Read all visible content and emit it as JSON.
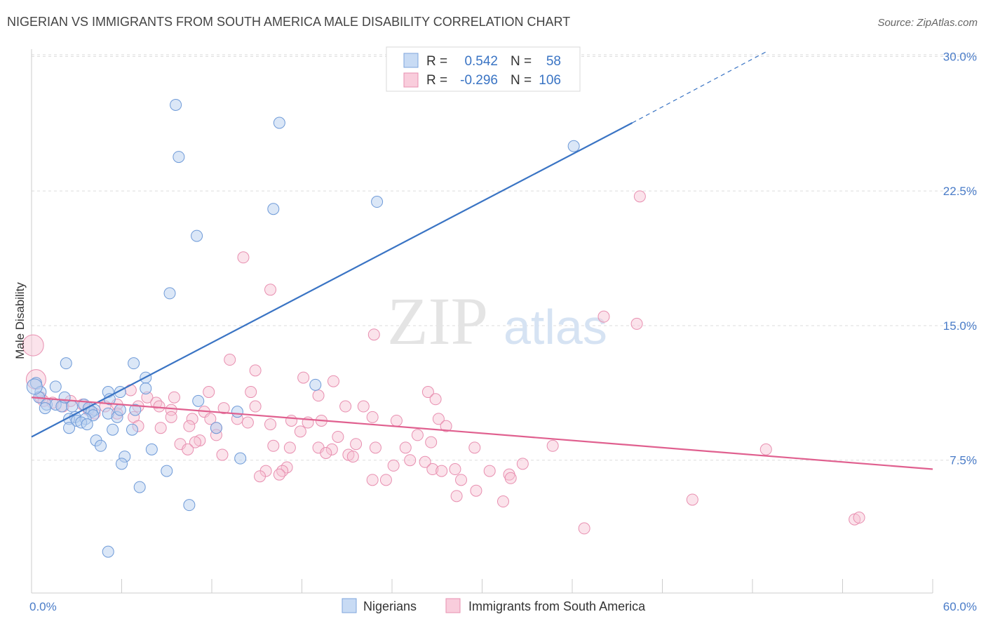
{
  "title": "NIGERIAN VS IMMIGRANTS FROM SOUTH AMERICA MALE DISABILITY CORRELATION CHART",
  "source": "Source: ZipAtlas.com",
  "watermark": {
    "zip": "ZIP",
    "atlas": "atlas"
  },
  "colors": {
    "blue": "#3a74c4",
    "blue_fill": "#b8d0f0",
    "pink": "#e0608f",
    "pink_fill": "#f7c0d2",
    "grid": "#dddddd",
    "tick_text": "#4a7cc8"
  },
  "legend": {
    "rows": [
      {
        "r_label": "R =",
        "r_value": "0.542",
        "n_label": "N =",
        "n_value": "58"
      },
      {
        "r_label": "R =",
        "r_value": "-0.296",
        "n_label": "N =",
        "n_value": "106"
      }
    ]
  },
  "chart_data": {
    "type": "scatter",
    "title": "NIGERIAN VS IMMIGRANTS FROM SOUTH AMERICA MALE DISABILITY CORRELATION CHART",
    "xlabel": "",
    "ylabel": "Male Disability",
    "xlim": [
      0,
      60
    ],
    "ylim": [
      0,
      31
    ],
    "x_tick_labels": [
      "0.0%",
      "60.0%"
    ],
    "y_ticks": [
      7.5,
      15.0,
      22.5,
      30.0
    ],
    "y_tick_labels": [
      "7.5%",
      "15.0%",
      "22.5%",
      "30.0%"
    ],
    "grid": true,
    "legend_position": "top-center",
    "series": [
      {
        "name": "Nigerians",
        "color": "#3a74c4",
        "trend": {
          "x0": 0,
          "y0": 8.8,
          "x1": 40,
          "y1": 26.3,
          "dash_to_x": 49,
          "dash_to_y": 30.3
        },
        "points": [
          [
            9.6,
            27.3
          ],
          [
            16.5,
            26.3
          ],
          [
            9.8,
            24.4
          ],
          [
            36.1,
            25.0
          ],
          [
            23,
            21.9
          ],
          [
            16.1,
            21.5
          ],
          [
            11,
            20.0
          ],
          [
            9.2,
            16.8
          ],
          [
            2.3,
            12.9
          ],
          [
            6.8,
            12.9
          ],
          [
            7.6,
            12.1
          ],
          [
            7.6,
            11.5
          ],
          [
            0.3,
            11.8
          ],
          [
            0.6,
            11.3
          ],
          [
            0.5,
            11.0
          ],
          [
            1,
            10.6
          ],
          [
            1.6,
            11.6
          ],
          [
            3.5,
            10.6
          ],
          [
            6.9,
            10.3
          ],
          [
            5.1,
            11.3
          ],
          [
            5.9,
            11.3
          ],
          [
            5.2,
            10.9
          ],
          [
            1.6,
            10.6
          ],
          [
            2,
            10.5
          ],
          [
            2.7,
            10.5
          ],
          [
            3.8,
            10.4
          ],
          [
            4.2,
            10.3
          ],
          [
            4,
            10.2
          ],
          [
            4.1,
            10.0
          ],
          [
            5.1,
            10.1
          ],
          [
            2.9,
            9.9
          ],
          [
            2.5,
            9.8
          ],
          [
            3,
            9.7
          ],
          [
            3.6,
            9.8
          ],
          [
            3.3,
            9.6
          ],
          [
            5.7,
            9.9
          ],
          [
            5.9,
            10.3
          ],
          [
            3.7,
            9.5
          ],
          [
            2.5,
            9.3
          ],
          [
            11.1,
            10.8
          ],
          [
            12.3,
            9.3
          ],
          [
            13.7,
            10.2
          ],
          [
            6.7,
            9.2
          ],
          [
            5.4,
            9.2
          ],
          [
            18.9,
            11.7
          ],
          [
            4.3,
            8.6
          ],
          [
            4.6,
            8.3
          ],
          [
            8,
            8.1
          ],
          [
            6.2,
            7.7
          ],
          [
            6,
            7.3
          ],
          [
            13.9,
            7.6
          ],
          [
            9,
            6.9
          ],
          [
            7.2,
            6.0
          ],
          [
            10.5,
            5.0
          ],
          [
            5.1,
            2.4
          ],
          [
            0.2,
            11.6
          ],
          [
            0.9,
            10.4
          ],
          [
            2.2,
            11.0
          ]
        ]
      },
      {
        "name": "Immigrants from South America",
        "color": "#e0608f",
        "trend": {
          "x0": 0,
          "y0": 11.0,
          "x1": 60,
          "y1": 7.0
        },
        "points": [
          [
            0.1,
            13.9
          ],
          [
            0.3,
            12.0
          ],
          [
            40.5,
            22.2
          ],
          [
            14.1,
            18.8
          ],
          [
            15.9,
            17.0
          ],
          [
            22.8,
            14.5
          ],
          [
            38.1,
            15.5
          ],
          [
            40.3,
            15.1
          ],
          [
            13.2,
            13.1
          ],
          [
            14.9,
            12.5
          ],
          [
            18.1,
            12.1
          ],
          [
            20.1,
            11.9
          ],
          [
            26.4,
            11.3
          ],
          [
            26.9,
            10.9
          ],
          [
            14.6,
            11.3
          ],
          [
            11.8,
            11.3
          ],
          [
            19.1,
            11.1
          ],
          [
            6.6,
            11.4
          ],
          [
            7.7,
            11.0
          ],
          [
            9.5,
            11.0
          ],
          [
            2.6,
            10.8
          ],
          [
            3.4,
            10.6
          ],
          [
            0.6,
            11.0
          ],
          [
            0.8,
            10.8
          ],
          [
            1.4,
            10.7
          ],
          [
            2.1,
            10.5
          ],
          [
            5.7,
            10.6
          ],
          [
            7.1,
            10.5
          ],
          [
            8.3,
            10.7
          ],
          [
            8.5,
            10.5
          ],
          [
            9.3,
            10.3
          ],
          [
            12.8,
            10.4
          ],
          [
            14.9,
            10.5
          ],
          [
            11.5,
            10.2
          ],
          [
            20.9,
            10.5
          ],
          [
            22.1,
            10.5
          ],
          [
            4.2,
            10.1
          ],
          [
            5.7,
            10.1
          ],
          [
            3.8,
            10.3
          ],
          [
            4.9,
            10.5
          ],
          [
            6.8,
            9.9
          ],
          [
            9.3,
            9.9
          ],
          [
            10.7,
            9.8
          ],
          [
            12.3,
            9.3
          ],
          [
            15.9,
            9.5
          ],
          [
            17.3,
            9.7
          ],
          [
            17.9,
            9.1
          ],
          [
            14.4,
            9.6
          ],
          [
            13.7,
            9.8
          ],
          [
            11.9,
            9.8
          ],
          [
            18.4,
            9.6
          ],
          [
            19.3,
            9.7
          ],
          [
            22.7,
            9.9
          ],
          [
            24.3,
            9.7
          ],
          [
            25.7,
            8.9
          ],
          [
            27.1,
            9.8
          ],
          [
            27.6,
            9.4
          ],
          [
            10.5,
            9.4
          ],
          [
            11.2,
            8.6
          ],
          [
            12.3,
            8.9
          ],
          [
            8.6,
            9.3
          ],
          [
            7.1,
            9.4
          ],
          [
            20.4,
            8.8
          ],
          [
            21.6,
            8.4
          ],
          [
            24.9,
            8.2
          ],
          [
            26.6,
            8.5
          ],
          [
            29.5,
            8.2
          ],
          [
            34.7,
            8.3
          ],
          [
            48.9,
            8.1
          ],
          [
            9.9,
            8.4
          ],
          [
            10.9,
            8.5
          ],
          [
            10.4,
            8.1
          ],
          [
            12.7,
            7.8
          ],
          [
            16.1,
            8.3
          ],
          [
            17.2,
            8.2
          ],
          [
            19.1,
            8.2
          ],
          [
            20,
            8.1
          ],
          [
            19.6,
            7.9
          ],
          [
            21.1,
            7.8
          ],
          [
            22.9,
            8.2
          ],
          [
            21.4,
            7.7
          ],
          [
            24.1,
            7.2
          ],
          [
            25.2,
            7.5
          ],
          [
            26.2,
            7.4
          ],
          [
            26.7,
            7.0
          ],
          [
            28.2,
            7.0
          ],
          [
            32.7,
            7.3
          ],
          [
            30.5,
            6.9
          ],
          [
            31.8,
            6.7
          ],
          [
            31.9,
            6.5
          ],
          [
            28.6,
            6.4
          ],
          [
            27.3,
            6.9
          ],
          [
            17,
            7.1
          ],
          [
            16.7,
            6.9
          ],
          [
            15.6,
            6.9
          ],
          [
            16.5,
            6.7
          ],
          [
            23.6,
            6.4
          ],
          [
            22.7,
            6.4
          ],
          [
            28.3,
            5.5
          ],
          [
            29.6,
            5.8
          ],
          [
            31.4,
            5.2
          ],
          [
            44,
            5.3
          ],
          [
            54.8,
            4.2
          ],
          [
            55.1,
            4.3
          ],
          [
            36.8,
            3.7
          ],
          [
            15.2,
            6.6
          ]
        ]
      }
    ]
  }
}
